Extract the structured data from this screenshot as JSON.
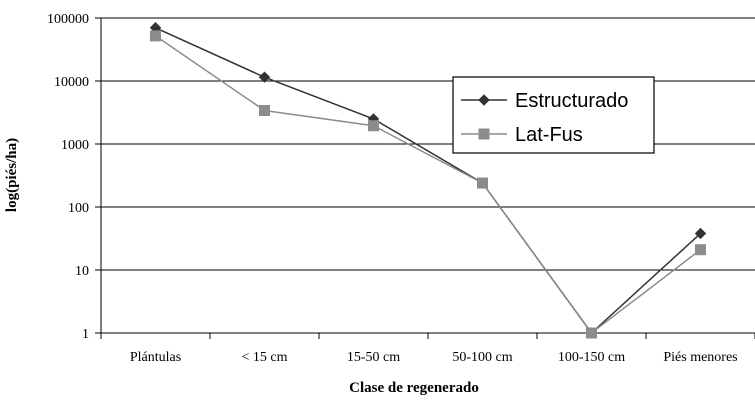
{
  "chart_data": {
    "type": "line",
    "title": "",
    "xlabel": "Clase de regenerado",
    "ylabel": "log(piés/ha)",
    "yscale": "log",
    "ylim": [
      1,
      100000
    ],
    "yticks": [
      "1",
      "10",
      "100",
      "1000",
      "10000",
      "100000"
    ],
    "grid": true,
    "legend_position": "top-right",
    "categories": [
      "Plántulas",
      "< 15 cm",
      "15-50 cm",
      "50-100 cm",
      "100-150 cm",
      "Piés menores"
    ],
    "series": [
      {
        "name": "Estructurado",
        "values": [
          70000,
          11500,
          2500,
          240,
          1,
          38
        ],
        "color": "#333333",
        "marker": "diamond"
      },
      {
        "name": "Lat-Fus",
        "values": [
          52000,
          3400,
          1950,
          240,
          1,
          21
        ],
        "color": "#8c8c8c",
        "marker": "square"
      }
    ]
  }
}
